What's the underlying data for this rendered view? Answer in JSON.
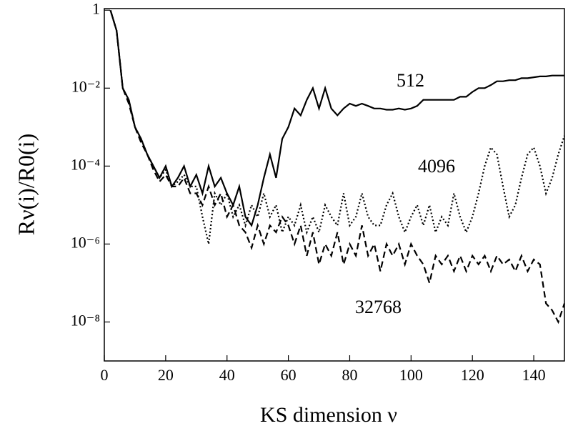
{
  "chart_data": {
    "type": "line",
    "xlabel": "KS dimension ν",
    "ylabel": "Rν(i)/R0(i)",
    "log_y": true,
    "xlim": [
      0,
      150
    ],
    "ylim": [
      1e-09,
      1.1
    ],
    "xticks": [
      0,
      20,
      40,
      60,
      80,
      100,
      120,
      140
    ],
    "yticks": [
      {
        "value": 1e-08,
        "label": "10⁻⁸"
      },
      {
        "value": 1e-06,
        "label": "10⁻⁶"
      },
      {
        "value": 0.0001,
        "label": "10⁻⁴"
      },
      {
        "value": 0.01,
        "label": "10⁻²"
      },
      1
    ],
    "x": [
      2,
      4,
      6,
      8,
      10,
      12,
      14,
      16,
      18,
      20,
      22,
      24,
      26,
      28,
      30,
      32,
      34,
      36,
      38,
      40,
      42,
      44,
      46,
      48,
      50,
      52,
      54,
      56,
      58,
      60,
      62,
      64,
      66,
      68,
      70,
      72,
      74,
      76,
      78,
      80,
      82,
      84,
      86,
      88,
      90,
      92,
      94,
      96,
      98,
      100,
      102,
      104,
      106,
      108,
      110,
      112,
      114,
      116,
      118,
      120,
      122,
      124,
      126,
      128,
      130,
      132,
      134,
      136,
      138,
      140,
      142,
      144,
      146,
      148,
      150
    ],
    "series": [
      {
        "name": "512",
        "color": "#000000",
        "linestyle": "solid",
        "values": [
          1,
          0.3,
          0.01,
          0.005,
          0.001,
          0.0005,
          0.0002,
          0.0001,
          5e-05,
          0.0001,
          3e-05,
          5e-05,
          0.0001,
          3e-05,
          6e-05,
          2e-05,
          0.0001,
          3e-05,
          5e-05,
          2e-05,
          1e-05,
          3e-05,
          5e-06,
          3e-06,
          1e-05,
          5e-05,
          0.0002,
          5e-05,
          0.0005,
          0.001,
          0.003,
          0.002,
          0.005,
          0.01,
          0.003,
          0.01,
          0.003,
          0.002,
          0.003,
          0.004,
          0.0035,
          0.004,
          0.0035,
          0.003,
          0.003,
          0.0028,
          0.0028,
          0.003,
          0.0028,
          0.003,
          0.0035,
          0.005,
          0.005,
          0.005,
          0.005,
          0.005,
          0.005,
          0.006,
          0.006,
          0.008,
          0.01,
          0.01,
          0.012,
          0.015,
          0.015,
          0.016,
          0.016,
          0.018,
          0.018,
          0.019,
          0.02,
          0.02,
          0.021,
          0.021,
          0.021
        ]
      },
      {
        "name": "4096",
        "color": "#000000",
        "linestyle": "dotted",
        "values": [
          1,
          0.3,
          0.01,
          0.005,
          0.001,
          0.0005,
          0.0002,
          0.0001,
          5e-05,
          8e-05,
          3e-05,
          4e-05,
          6e-05,
          3e-05,
          3e-05,
          5e-06,
          1e-06,
          2e-05,
          1e-05,
          2e-05,
          5e-06,
          1e-05,
          3e-06,
          1e-05,
          5e-06,
          2e-05,
          5e-06,
          1e-05,
          2e-06,
          5e-06,
          3e-06,
          1e-05,
          2e-06,
          5e-06,
          2e-06,
          1e-05,
          5e-06,
          3e-06,
          2e-05,
          3e-06,
          5e-06,
          2e-05,
          5e-06,
          3e-06,
          3e-06,
          1e-05,
          2e-05,
          5e-06,
          2e-06,
          5e-06,
          1e-05,
          3e-06,
          1e-05,
          2e-06,
          5e-06,
          3e-06,
          2e-05,
          5e-06,
          2e-06,
          5e-06,
          2e-05,
          0.0001,
          0.0003,
          0.0002,
          3e-05,
          5e-06,
          1e-05,
          5e-05,
          0.0002,
          0.0003,
          0.0001,
          2e-05,
          5e-05,
          0.0002,
          0.0006
        ]
      },
      {
        "name": "32768",
        "color": "#000000",
        "linestyle": "dashed",
        "values": [
          1,
          0.3,
          0.01,
          0.004,
          0.001,
          0.0004,
          0.0002,
          8e-05,
          4e-05,
          6e-05,
          3e-05,
          3e-05,
          5e-05,
          2e-05,
          2e-05,
          1e-05,
          3e-05,
          1e-05,
          2e-05,
          5e-06,
          1e-05,
          3e-06,
          2e-06,
          8e-07,
          3e-06,
          1e-06,
          3e-06,
          2e-06,
          5e-06,
          3e-06,
          1e-06,
          3e-06,
          5e-07,
          2e-06,
          3e-07,
          1e-06,
          5e-07,
          2e-06,
          3e-07,
          1e-06,
          5e-07,
          3e-06,
          5e-07,
          1e-06,
          2e-07,
          1e-06,
          5e-07,
          1e-06,
          3e-07,
          1e-06,
          5e-07,
          3e-07,
          1e-07,
          5e-07,
          3e-07,
          5e-07,
          2e-07,
          5e-07,
          2e-07,
          5e-07,
          3e-07,
          5e-07,
          2e-07,
          5e-07,
          3e-07,
          4e-07,
          2e-07,
          5e-07,
          2e-07,
          4e-07,
          3e-07,
          3e-08,
          2e-08,
          1e-08,
          3e-08
        ]
      }
    ]
  }
}
